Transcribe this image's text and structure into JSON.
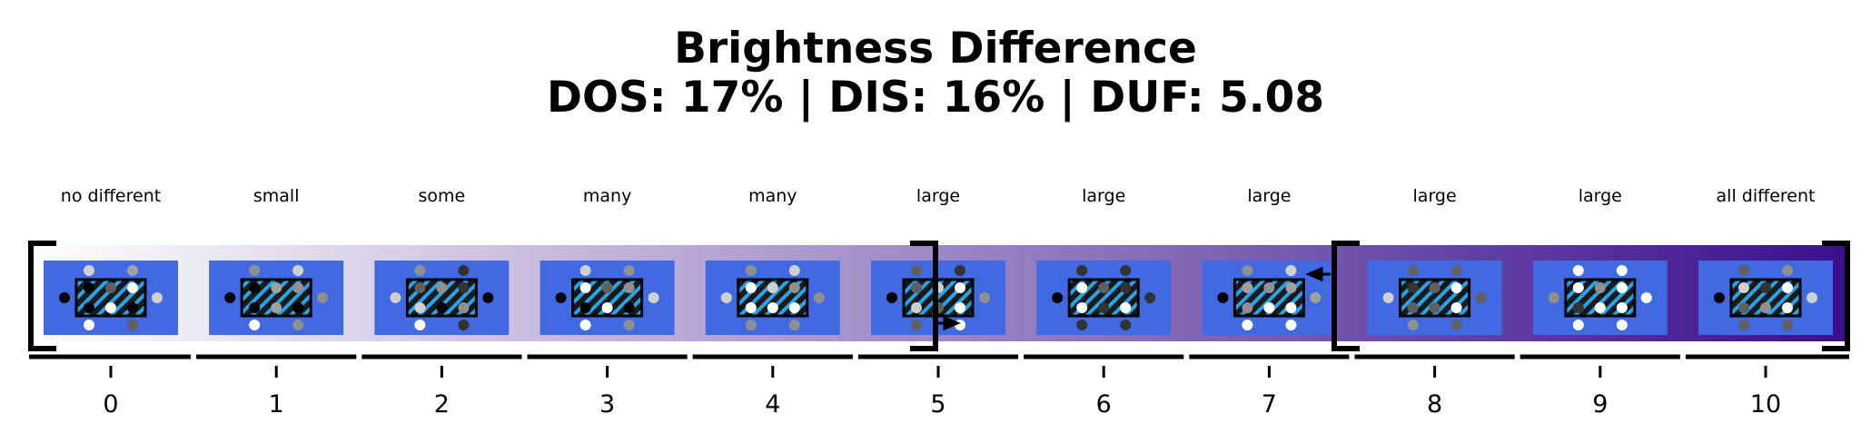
{
  "title": {
    "line1": "Brightness Difference",
    "line2": "DOS: 17% | DIS: 16% | DUF: 5.08"
  },
  "colors": {
    "gradient_start": "#ffffff",
    "gradient_end": "#3a0f8c",
    "panel": "#4169e1",
    "hatch": "#29a3e8",
    "bracket": "#000000"
  },
  "scale": {
    "ticks": [
      "0",
      "1",
      "2",
      "3",
      "4",
      "5",
      "6",
      "7",
      "8",
      "9",
      "10"
    ],
    "labels": [
      "no different",
      "small",
      "some",
      "many",
      "many",
      "large",
      "large",
      "large",
      "large",
      "large",
      "all different"
    ]
  },
  "brackets": [
    {
      "name": "bracket-left",
      "at": 0,
      "side": "open"
    },
    {
      "name": "bracket-mid",
      "at": 5,
      "side": "close"
    },
    {
      "name": "bracket-right-open",
      "at": 7.4,
      "side": "open"
    },
    {
      "name": "bracket-end",
      "at": 10.5,
      "side": "close"
    }
  ],
  "panels": [
    {
      "dots": [
        "#d0d0d0",
        "#a0a0a0",
        "#000000",
        "#d0d0d0",
        "#000000",
        "#606060",
        "#ffffff",
        "#000000",
        "#ffffff",
        "#000000",
        "#ffffff",
        "#606060"
      ]
    },
    {
      "dots": [
        "#909090",
        "#d0d0d0",
        "#000000",
        "#909090",
        "#000000",
        "#a0a0a0",
        "#909090",
        "#000000",
        "#a0a0a0",
        "#000000",
        "#ffffff",
        "#909090"
      ]
    },
    {
      "dots": [
        "#909090",
        "#333333",
        "#d0d0d0",
        "#000000",
        "#606060",
        "#909090",
        "#333333",
        "#d0d0d0",
        "#000000",
        "#909090",
        "#ffffff",
        "#333333"
      ]
    },
    {
      "dots": [
        "#d0d0d0",
        "#909090",
        "#000000",
        "#d0d0d0",
        "#ffffff",
        "#606060",
        "#909090",
        "#000000",
        "#ffffff",
        "#000000",
        "#ffffff",
        "#909090"
      ]
    },
    {
      "dots": [
        "#909090",
        "#d0d0d0",
        "#d0d0d0",
        "#909090",
        "#ffffff",
        "#d0d0d0",
        "#909090",
        "#ffffff",
        "#ffffff",
        "#ffffff",
        "#909090",
        "#909090"
      ]
    },
    {
      "dots": [
        "#606060",
        "#333333",
        "#000000",
        "#909090",
        "#606060",
        "#d0d0d0",
        "#ffffff",
        "#d0d0d0",
        "#606060",
        "#ffffff",
        "#606060",
        "#ffffff"
      ]
    },
    {
      "dots": [
        "#333333",
        "#333333",
        "#000000",
        "#333333",
        "#ffffff",
        "#606060",
        "#333333",
        "#ffffff",
        "#333333",
        "#ffffff",
        "#333333",
        "#333333"
      ]
    },
    {
      "dots": [
        "#909090",
        "#d0d0d0",
        "#000000",
        "#a0a0a0",
        "#a0a0a0",
        "#909090",
        "#a0a0a0",
        "#909090",
        "#ffffff",
        "#ffffff",
        "#ffffff",
        "#ffffff"
      ]
    },
    {
      "dots": [
        "#606060",
        "#606060",
        "#d0d0d0",
        "#606060",
        "#333333",
        "#606060",
        "#ffffff",
        "#606060",
        "#606060",
        "#ffffff",
        "#909090",
        "#606060"
      ]
    },
    {
      "dots": [
        "#ffffff",
        "#ffffff",
        "#909090",
        "#ffffff",
        "#ffffff",
        "#909090",
        "#ffffff",
        "#333333",
        "#ffffff",
        "#ffffff",
        "#ffffff",
        "#ffffff"
      ]
    },
    {
      "dots": [
        "#606060",
        "#909090",
        "#000000",
        "#d0d0d0",
        "#d0d0d0",
        "#333333",
        "#ffffff",
        "#606060",
        "#909090",
        "#ffffff",
        "#606060",
        "#606060"
      ]
    }
  ]
}
